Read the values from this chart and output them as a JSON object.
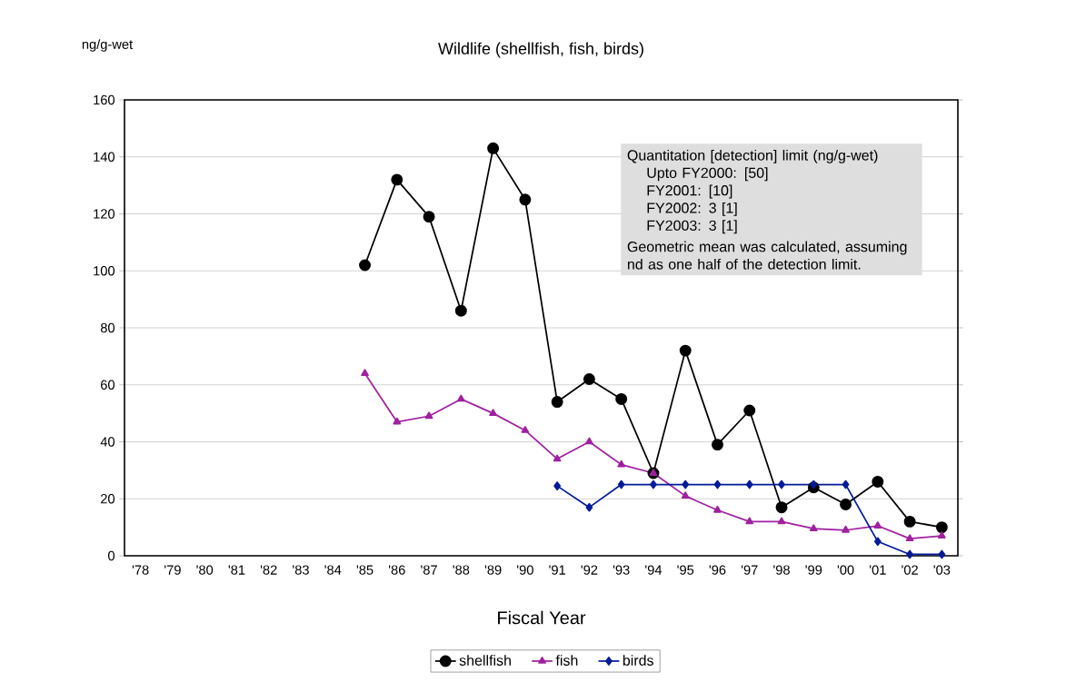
{
  "chart_data": {
    "type": "line",
    "title": "Wildlife (shellfish, fish, birds)",
    "xlabel": "Fiscal Year",
    "ylabel": "ng/g-wet",
    "categories": [
      "'78",
      "'79",
      "'80",
      "'81",
      "'82",
      "'83",
      "'84",
      "'85",
      "'86",
      "'87",
      "'88",
      "'89",
      "'90",
      "'91",
      "'92",
      "'93",
      "'94",
      "'95",
      "'96",
      "'97",
      "'98",
      "'99",
      "'00",
      "'01",
      "'02",
      "'03"
    ],
    "series": [
      {
        "name": "shellfish",
        "color": "#000000",
        "marker": "circle",
        "values": [
          null,
          null,
          null,
          null,
          null,
          null,
          null,
          102,
          132,
          119,
          86,
          143,
          125,
          54,
          62,
          55,
          29,
          72,
          39,
          51,
          17,
          24,
          18,
          26,
          12,
          10
        ]
      },
      {
        "name": "fish",
        "color": "#a020a0",
        "marker": "triangle",
        "values": [
          null,
          null,
          null,
          null,
          null,
          null,
          null,
          64,
          47,
          49,
          55,
          50,
          44,
          34,
          40,
          32,
          29,
          21,
          16,
          12,
          12,
          9.5,
          9,
          10.5,
          6,
          7
        ]
      },
      {
        "name": "birds",
        "color": "#001a99",
        "marker": "diamond",
        "values": [
          null,
          null,
          null,
          null,
          null,
          null,
          null,
          null,
          null,
          null,
          null,
          null,
          null,
          24.5,
          17,
          25,
          25,
          25,
          25,
          25,
          25,
          25,
          25,
          5,
          0.5,
          0.5
        ]
      }
    ],
    "ylim": [
      0,
      160
    ],
    "yticks": [
      0,
      20,
      40,
      60,
      80,
      100,
      120,
      140,
      160
    ],
    "grid": "y",
    "legend": "bottom",
    "line_style": "solid",
    "annotations": [
      "Quantitation [detection] limit (ng/g-wet)",
      "Upto FY2000: [50]",
      "FY2001: [10]",
      "FY2002: 3 [1]",
      "FY2003: 3 [1]",
      "Geometric mean was calculated, assuming nd as one half of the detection limit."
    ]
  }
}
